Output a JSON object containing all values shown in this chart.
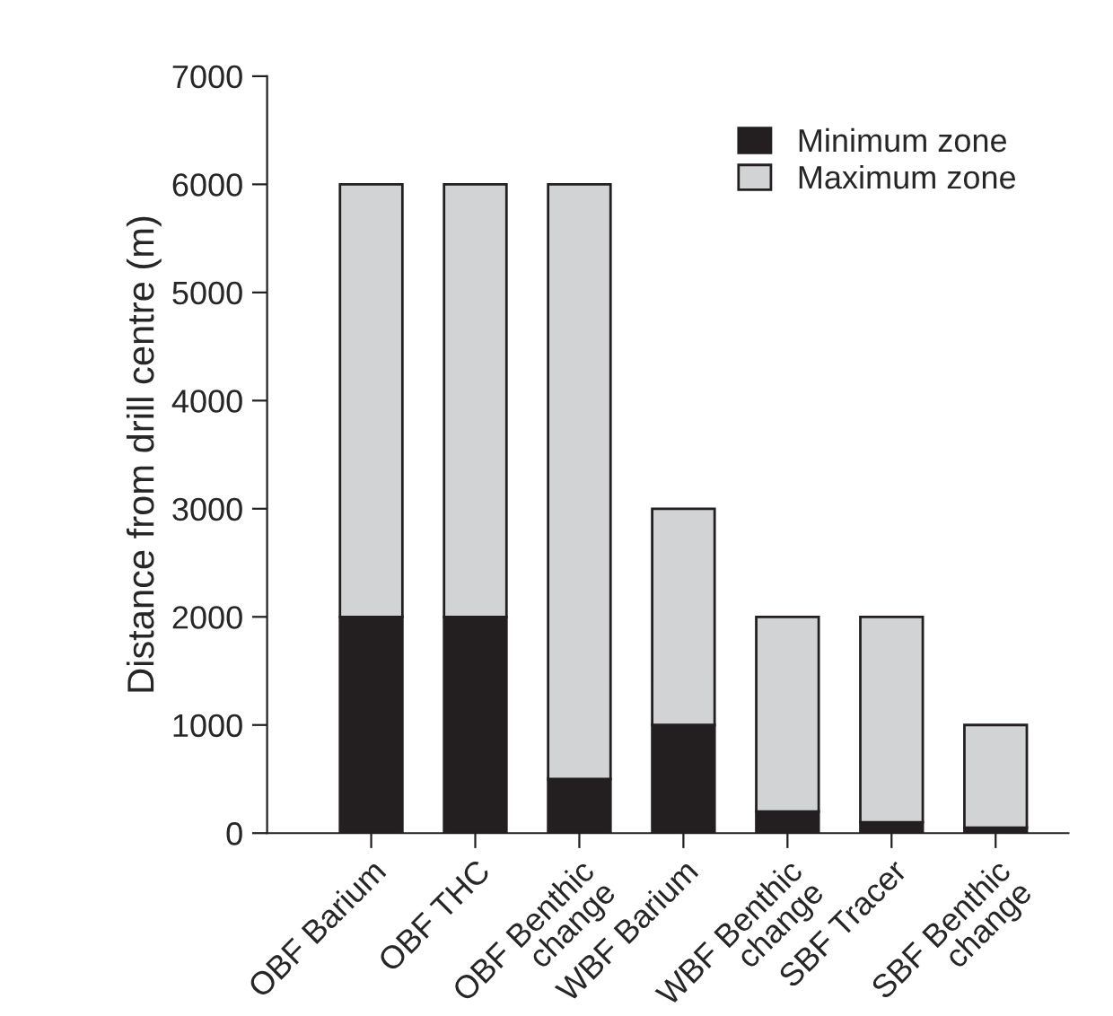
{
  "chart_data": {
    "type": "bar",
    "stacked": true,
    "ylabel": "Distance from drill centre (m)",
    "categories": [
      "OBF Barium",
      "OBF THC",
      "OBF Benthic\nchange",
      "WBF Barium",
      "WBF Benthic\nchange",
      "SBF Tracer",
      "SBF Benthic\nchange"
    ],
    "series": [
      {
        "name": "Minimum zone",
        "color": "#231f20",
        "values": [
          2000,
          2000,
          500,
          1000,
          200,
          100,
          50
        ]
      },
      {
        "name": "Maximum zone",
        "color": "#d1d3d4",
        "values": [
          4000,
          4000,
          5500,
          2000,
          1800,
          1900,
          950
        ]
      }
    ],
    "ylim": [
      0,
      7000
    ],
    "yticks": [
      0,
      1000,
      2000,
      3000,
      4000,
      5000,
      6000,
      7000
    ],
    "grid": false,
    "legend": "top right"
  }
}
